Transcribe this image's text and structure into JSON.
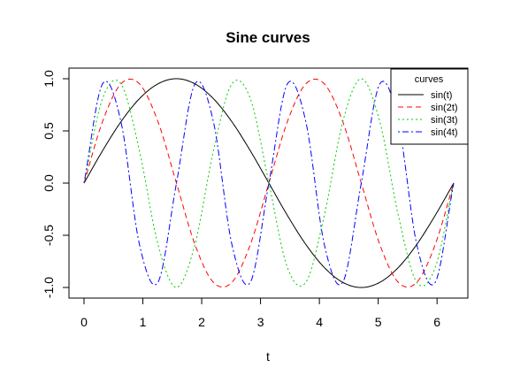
{
  "chart_data": {
    "type": "line",
    "title": "Sine curves",
    "xlabel": "t",
    "ylabel": "",
    "xlim": [
      0,
      6.283
    ],
    "ylim": [
      -1,
      1
    ],
    "x_ticks": [
      "0",
      "1",
      "2",
      "3",
      "4",
      "5",
      "6"
    ],
    "y_ticks": [
      "-1.0",
      "-0.5",
      "0.0",
      "0.5",
      "1.0"
    ],
    "grid": false,
    "legend": {
      "title": "curves",
      "placement": "top-right",
      "entries": [
        "sin(t)",
        "sin(2t)",
        "sin(3t)",
        "sin(4t)"
      ]
    },
    "x": [
      0,
      0.314,
      0.628,
      0.942,
      1.257,
      1.571,
      1.885,
      2.199,
      2.513,
      2.827,
      3.142,
      3.456,
      3.77,
      4.084,
      4.398,
      4.712,
      5.027,
      5.341,
      5.655,
      5.969,
      6.283
    ],
    "series": [
      {
        "name": "sin(t)",
        "color": "#000000",
        "dash": "solid",
        "values": [
          0,
          0.309,
          0.588,
          0.809,
          0.951,
          1.0,
          0.951,
          0.809,
          0.588,
          0.309,
          0,
          -0.309,
          -0.588,
          -0.809,
          -0.951,
          -1.0,
          -0.951,
          -0.809,
          -0.588,
          -0.309,
          0
        ]
      },
      {
        "name": "sin(2t)",
        "color": "#ff0000",
        "dash": "dashed",
        "values": [
          0,
          0.588,
          0.951,
          0.951,
          0.588,
          0,
          -0.588,
          -0.951,
          -0.951,
          -0.588,
          0,
          0.588,
          0.951,
          0.951,
          0.588,
          0,
          -0.588,
          -0.951,
          -0.951,
          -0.588,
          0
        ]
      },
      {
        "name": "sin(3t)",
        "color": "#00cd00",
        "dash": "dotted",
        "values": [
          0,
          0.809,
          0.951,
          0.309,
          -0.588,
          -1.0,
          -0.588,
          0.309,
          0.951,
          0.809,
          0,
          -0.809,
          -0.951,
          -0.309,
          0.588,
          1.0,
          0.588,
          -0.309,
          -0.951,
          -0.809,
          0
        ]
      },
      {
        "name": "sin(4t)",
        "color": "#0000ff",
        "dash": "dotdash",
        "values": [
          0,
          0.951,
          0.588,
          -0.588,
          -0.951,
          0,
          0.951,
          0.588,
          -0.588,
          -0.951,
          0,
          0.951,
          0.588,
          -0.588,
          -0.951,
          0,
          0.951,
          0.588,
          -0.588,
          -0.951,
          0
        ]
      }
    ]
  }
}
